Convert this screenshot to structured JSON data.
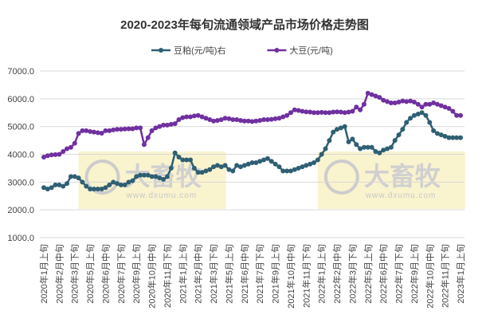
{
  "chart_data": {
    "type": "line",
    "title": "2020-2023年每旬流通领域产品市场价格走势图",
    "watermark": {
      "text": "大畜牧",
      "url": "www.dxumu.com"
    },
    "categories": [
      "2020年1月上旬",
      null,
      null,
      null,
      "2020年2月中旬",
      null,
      null,
      null,
      "2020年3月下旬",
      null,
      null,
      null,
      "2020年5月上旬",
      null,
      null,
      null,
      "2020年6月中旬",
      null,
      null,
      null,
      "2020年7月下旬",
      null,
      null,
      null,
      "2020年9月上旬",
      null,
      null,
      null,
      "2020年10月中旬",
      null,
      null,
      null,
      "2020年11月下旬",
      null,
      null,
      null,
      "2021年1月上旬",
      null,
      null,
      null,
      "2021年2月中旬",
      null,
      null,
      null,
      "2021年3月下旬",
      null,
      null,
      null,
      "2021年5月上旬",
      null,
      null,
      null,
      "2021年6月中旬",
      null,
      null,
      null,
      "2021年7月下旬",
      null,
      null,
      null,
      "2021年9月上旬",
      null,
      null,
      null,
      "2021年10月中旬",
      null,
      null,
      null,
      "2021年11月下旬",
      null,
      null,
      null,
      "2022年1月上旬",
      null,
      null,
      null,
      "2022年2月中旬",
      null,
      null,
      null,
      "2022年3月下旬",
      null,
      null,
      null,
      "2022年5月上旬",
      null,
      null,
      null,
      "2022年6月中旬",
      null,
      null,
      null,
      "2022年7月下旬",
      null,
      null,
      null,
      "2022年9月上旬",
      null,
      null,
      null,
      "2022年10月中旬",
      null,
      null,
      null,
      "2022年11月下旬",
      null,
      null,
      null,
      "2023年1月上旬"
    ],
    "series": [
      {
        "name": "豆粕(元/吨)右",
        "color": "#2f5f73",
        "values": [
          2800,
          2750,
          2800,
          2900,
          2900,
          2850,
          2950,
          3200,
          3200,
          3150,
          3000,
          2850,
          2750,
          2750,
          2750,
          2750,
          2800,
          2900,
          3000,
          2950,
          2900,
          2900,
          3000,
          3050,
          3200,
          3250,
          3250,
          3250,
          3200,
          3200,
          3150,
          3100,
          3200,
          3500,
          4050,
          3900,
          3800,
          3800,
          3800,
          3500,
          3350,
          3350,
          3400,
          3450,
          3550,
          3600,
          3550,
          3600,
          3450,
          3400,
          3600,
          3550,
          3600,
          3650,
          3700,
          3700,
          3750,
          3800,
          3850,
          3750,
          3650,
          3550,
          3400,
          3400,
          3400,
          3450,
          3500,
          3550,
          3600,
          3650,
          3700,
          3800,
          4000,
          4200,
          4500,
          4800,
          4900,
          4950,
          5000,
          4450,
          4550,
          4350,
          4200,
          4250,
          4250,
          4250,
          4100,
          4050,
          4150,
          4200,
          4250,
          4500,
          4700,
          4900,
          5150,
          5300,
          5400,
          5450,
          5500,
          5400,
          5150,
          4850,
          4750,
          4700,
          4650,
          4600,
          4600,
          4600,
          4600
        ]
      },
      {
        "name": "大豆(元/吨)",
        "color": "#7030a0",
        "values": [
          3900,
          3950,
          3980,
          3990,
          4000,
          4100,
          4200,
          4250,
          4400,
          4750,
          4850,
          4850,
          4820,
          4800,
          4780,
          4760,
          4850,
          4850,
          4880,
          4900,
          4900,
          4910,
          4920,
          4920,
          4950,
          4950,
          4350,
          4600,
          4850,
          4950,
          5000,
          5050,
          5050,
          5080,
          5100,
          5250,
          5320,
          5350,
          5350,
          5380,
          5400,
          5350,
          5300,
          5250,
          5200,
          5220,
          5250,
          5300,
          5280,
          5250,
          5250,
          5220,
          5200,
          5200,
          5180,
          5200,
          5220,
          5250,
          5250,
          5260,
          5280,
          5300,
          5350,
          5400,
          5500,
          5600,
          5580,
          5550,
          5530,
          5520,
          5500,
          5500,
          5510,
          5500,
          5500,
          5520,
          5530,
          5520,
          5500,
          5520,
          5550,
          5700,
          5600,
          5800,
          6200,
          6150,
          6100,
          6050,
          5950,
          5900,
          5850,
          5850,
          5880,
          5920,
          5900,
          5920,
          5880,
          5800,
          5700,
          5800,
          5800,
          5850,
          5800,
          5750,
          5700,
          5650,
          5550,
          5400,
          5400
        ]
      }
    ],
    "ylim": [
      1000,
      7000
    ],
    "yticks": [
      {
        "value": 1000,
        "label": "1000.0"
      },
      {
        "value": 2000,
        "label": "2000.0"
      },
      {
        "value": 3000,
        "label": "3000.0"
      },
      {
        "value": 4000,
        "label": "4000.0"
      },
      {
        "value": 5000,
        "label": "5000.0"
      },
      {
        "value": 6000,
        "label": "6000.0"
      },
      {
        "value": 7000,
        "label": "7000.0"
      }
    ],
    "grid": true
  }
}
